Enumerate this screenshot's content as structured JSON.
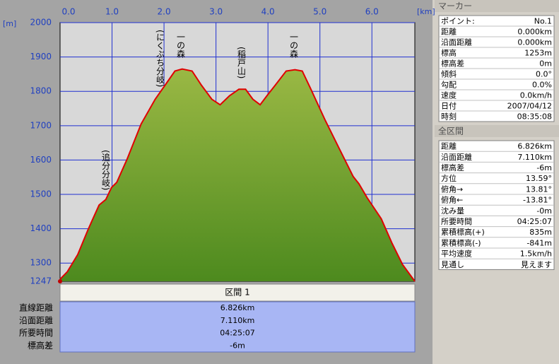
{
  "chart_data": {
    "type": "area",
    "x": [
      0,
      0.14,
      0.34,
      0.54,
      0.75,
      0.88,
      0.99,
      1.09,
      1.29,
      1.56,
      1.83,
      2.04,
      2.21,
      2.35,
      2.54,
      2.72,
      2.92,
      3.08,
      3.26,
      3.44,
      3.57,
      3.71,
      3.85,
      3.98,
      4.14,
      4.35,
      4.52,
      4.66,
      4.82,
      5.1,
      5.37,
      5.64,
      5.75,
      5.91,
      6.18,
      6.39,
      6.59,
      6.826
    ],
    "values": [
      1253,
      1275,
      1325,
      1398,
      1469,
      1485,
      1520,
      1535,
      1603,
      1705,
      1777,
      1822,
      1859,
      1865,
      1859,
      1818,
      1777,
      1761,
      1787,
      1806,
      1806,
      1777,
      1761,
      1787,
      1818,
      1859,
      1863,
      1859,
      1808,
      1716,
      1634,
      1552,
      1531,
      1490,
      1429,
      1357,
      1296,
      1247
    ],
    "color": "#e00000",
    "fill": "#6f9a2c",
    "xlim": [
      0,
      6.826
    ],
    "ylim": [
      1247,
      2000
    ],
    "xticks": [
      {
        "value": 0,
        "label": "0.0"
      },
      {
        "value": 1,
        "label": "1.0"
      },
      {
        "value": 2,
        "label": "2.0"
      },
      {
        "value": 3,
        "label": "3.0"
      },
      {
        "value": 4,
        "label": "4.0"
      },
      {
        "value": 5,
        "label": "5.0"
      },
      {
        "value": 6,
        "label": "6.0"
      }
    ],
    "yticks": [
      1247,
      1300,
      1400,
      1500,
      1600,
      1700,
      1800,
      1900,
      2000
    ],
    "xlabel": "[km]",
    "ylabel": "[m]",
    "grid": true,
    "annotations": [
      "(追分分岐)",
      "(にくぶち分岐)",
      "一の森",
      "(稲戸山)",
      "一の森"
    ]
  },
  "section_table": {
    "title": "区間 1",
    "rows": [
      [
        "直線距離",
        "6.826km"
      ],
      [
        "沿面距離",
        "7.110km"
      ],
      [
        "所要時間",
        "04:25:07"
      ],
      [
        "標高差",
        "-6m"
      ]
    ]
  },
  "marker_panel": {
    "title": "マーカー",
    "rows": [
      [
        "ポイント:",
        "No.1"
      ],
      [
        "距離",
        "0.000km"
      ],
      [
        "沿面距離",
        "0.000km"
      ],
      [
        "標高",
        "1253m"
      ],
      [
        "標高差",
        "0m"
      ],
      [
        "傾斜",
        "0.0°"
      ],
      [
        "勾配",
        "0.0%"
      ],
      [
        "速度",
        "0.0km/h"
      ],
      [
        "日付",
        "2007/04/12"
      ],
      [
        "時刻",
        "08:35:08"
      ]
    ]
  },
  "total_panel": {
    "title": "全区間",
    "rows": [
      [
        "距離",
        "6.826km"
      ],
      [
        "沿面距離",
        "7.110km"
      ],
      [
        "標高差",
        "-6m"
      ],
      [
        "方位",
        "13.59°"
      ],
      [
        "俯角→",
        "13.81°"
      ],
      [
        "俯角←",
        "-13.81°"
      ],
      [
        "沈み量",
        "-0m"
      ],
      [
        "所要時間",
        "04:25:07"
      ],
      [
        "累積標高(+)",
        "835m"
      ],
      [
        "累積標高(-)",
        "-841m"
      ],
      [
        "平均速度",
        "1.5km/h"
      ],
      [
        "見通し",
        "見えます"
      ]
    ]
  }
}
